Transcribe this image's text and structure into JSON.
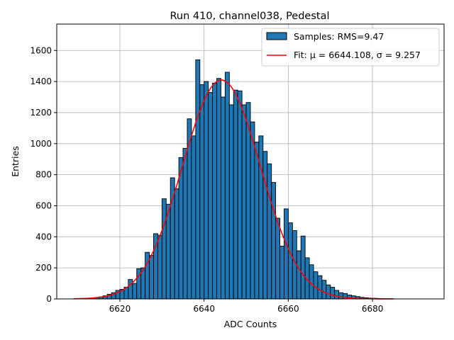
{
  "chart_data": {
    "type": "bar",
    "title": "Run 410, channel038, Pedestal",
    "xlabel": "ADC Counts",
    "ylabel": "Entries",
    "xlim": [
      6605,
      6697
    ],
    "ylim": [
      0,
      1770
    ],
    "grid": true,
    "legend_placement": "top-right",
    "bin_width": 1,
    "xticks": [
      6620,
      6640,
      6660,
      6680
    ],
    "yticks": [
      0,
      200,
      400,
      600,
      800,
      1000,
      1200,
      1400,
      1600
    ],
    "histogram": {
      "name": "Samples: RMS=9.47",
      "color": "#1f77b4",
      "bin_starts": [
        6609,
        6610,
        6611,
        6612,
        6613,
        6614,
        6615,
        6616,
        6617,
        6618,
        6619,
        6620,
        6621,
        6622,
        6623,
        6624,
        6625,
        6626,
        6627,
        6628,
        6629,
        6630,
        6631,
        6632,
        6633,
        6634,
        6635,
        6636,
        6637,
        6638,
        6639,
        6640,
        6641,
        6642,
        6643,
        6644,
        6645,
        6646,
        6647,
        6648,
        6649,
        6650,
        6651,
        6652,
        6653,
        6654,
        6655,
        6656,
        6657,
        6658,
        6659,
        6660,
        6661,
        6662,
        6663,
        6664,
        6665,
        6666,
        6667,
        6668,
        6669,
        6670,
        6671,
        6672,
        6673,
        6674,
        6675,
        6676,
        6677,
        6678,
        6679,
        6680,
        6681,
        6682,
        6683,
        6684
      ],
      "counts": [
        1,
        2,
        3,
        4,
        6,
        9,
        13,
        20,
        30,
        40,
        55,
        62,
        75,
        125,
        100,
        195,
        200,
        300,
        280,
        420,
        410,
        645,
        610,
        780,
        710,
        910,
        970,
        1160,
        1050,
        1540,
        1380,
        1400,
        1330,
        1390,
        1420,
        1300,
        1460,
        1250,
        1345,
        1340,
        1250,
        1265,
        1140,
        1010,
        1050,
        950,
        870,
        750,
        520,
        340,
        580,
        490,
        440,
        310,
        405,
        265,
        220,
        175,
        150,
        120,
        90,
        75,
        55,
        40,
        35,
        25,
        20,
        15,
        10,
        7,
        5,
        4,
        3,
        2,
        1,
        1
      ]
    },
    "fit": {
      "name": "Fit: μ = 6644.108, σ = 9.257",
      "color": "#ff0000",
      "mu": 6644.108,
      "sigma": 9.257,
      "amplitude": 1410,
      "x_range": [
        6609,
        6685
      ]
    }
  }
}
